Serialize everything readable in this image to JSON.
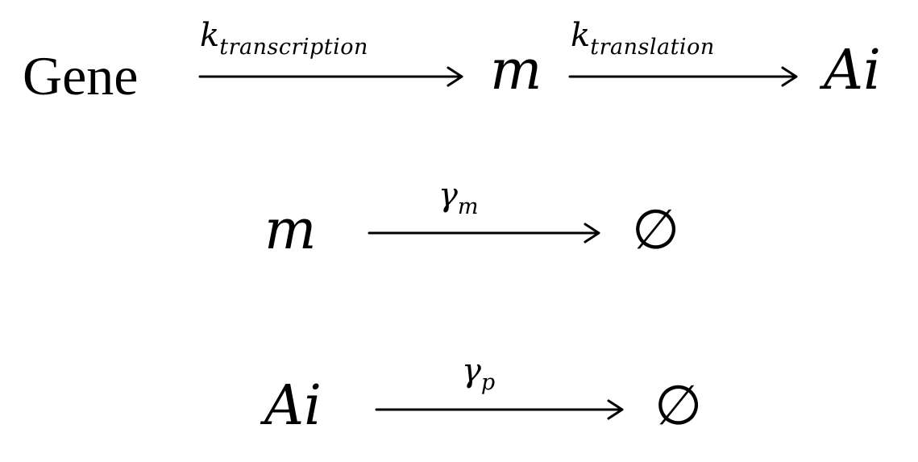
{
  "reactions": [
    {
      "reactant": "Gene",
      "arrow1": {
        "rate_base": "k",
        "rate_sub": "transcription"
      },
      "intermediate": "m",
      "arrow2": {
        "rate_base": "k",
        "rate_sub": "translation"
      },
      "product": "Ai"
    },
    {
      "reactant": "m",
      "arrow": {
        "rate_base": "γ",
        "rate_sub": "m"
      },
      "product": "∅"
    },
    {
      "reactant": "Ai",
      "arrow": {
        "rate_base": "γ",
        "rate_sub": "p"
      },
      "product": "∅"
    }
  ]
}
